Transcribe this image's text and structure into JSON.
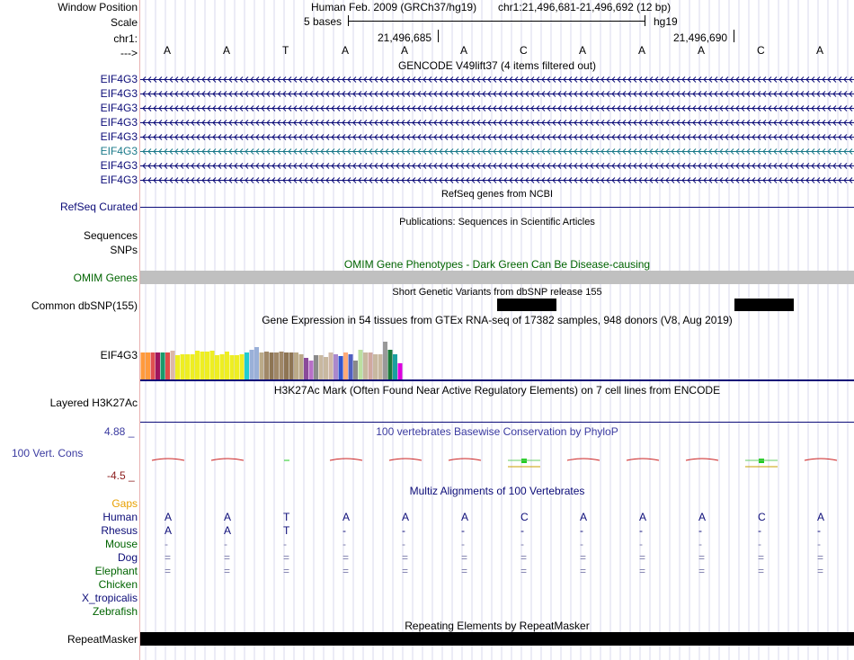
{
  "header": {
    "window_position_label": "Window Position",
    "scale_label": "Scale",
    "chrom_label": "chr1:",
    "arrow_label": "--->",
    "assembly": "Human Feb. 2009 (GRCh37/hg19)",
    "position": "chr1:21,496,681-21,496,692 (12 bp)",
    "scale_text": "5 bases",
    "db": "hg19",
    "coord_left": "21,496,685",
    "coord_right": "21,496,690"
  },
  "bases": [
    "A",
    "A",
    "T",
    "A",
    "A",
    "A",
    "C",
    "A",
    "A",
    "A",
    "C",
    "A"
  ],
  "gencode": {
    "title": "GENCODE V49lift37 (4 items filtered out)",
    "genes": [
      {
        "label": "EIF4G3",
        "highlight": false
      },
      {
        "label": "EIF4G3",
        "highlight": false
      },
      {
        "label": "EIF4G3",
        "highlight": false
      },
      {
        "label": "EIF4G3",
        "highlight": false
      },
      {
        "label": "EIF4G3",
        "highlight": false
      },
      {
        "label": "EIF4G3",
        "highlight": true
      },
      {
        "label": "EIF4G3",
        "highlight": false
      },
      {
        "label": "EIF4G3",
        "highlight": false
      }
    ]
  },
  "refseq": {
    "title": "RefSeq genes from NCBI",
    "label": "RefSeq Curated"
  },
  "pubs": {
    "title": "Publications: Sequences in Scientific Articles",
    "seq_label": "Sequences",
    "snp_label": "SNPs"
  },
  "omim": {
    "title": "OMIM Gene Phenotypes - Dark Green Can Be Disease-causing",
    "label": "OMIM Genes"
  },
  "dbsnp": {
    "title": "Short Genetic Variants from dbSNP release 155",
    "label": "Common dbSNP(155)"
  },
  "gtex": {
    "title": "Gene Expression in 54 tissues from GTEx RNA-seq of 17382 samples, 948 donors (V8, Aug 2019)",
    "label": "EIF4G3",
    "bars": [
      {
        "c": "#ff9a3c",
        "v": 0.5
      },
      {
        "c": "#ff9a3c",
        "v": 0.5
      },
      {
        "c": "#e05050",
        "v": 0.5
      },
      {
        "c": "#a0155e",
        "v": 0.5
      },
      {
        "c": "#1a9a6a",
        "v": 0.5
      },
      {
        "c": "#e04a4a",
        "v": 0.5
      },
      {
        "c": "#dcb8a8",
        "v": 0.53
      },
      {
        "c": "#eeee22",
        "v": 0.45
      },
      {
        "c": "#eeee22",
        "v": 0.47
      },
      {
        "c": "#eeee22",
        "v": 0.47
      },
      {
        "c": "#eeee22",
        "v": 0.47
      },
      {
        "c": "#eeee22",
        "v": 0.53
      },
      {
        "c": "#eeee22",
        "v": 0.52
      },
      {
        "c": "#eeee22",
        "v": 0.52
      },
      {
        "c": "#eeee22",
        "v": 0.53
      },
      {
        "c": "#eeee22",
        "v": 0.45
      },
      {
        "c": "#eeee22",
        "v": 0.47
      },
      {
        "c": "#eeee22",
        "v": 0.52
      },
      {
        "c": "#eeee22",
        "v": 0.45
      },
      {
        "c": "#eeee22",
        "v": 0.45
      },
      {
        "c": "#eeee22",
        "v": 0.47
      },
      {
        "c": "#22ccd0",
        "v": 0.5
      },
      {
        "c": "#9ab0d8",
        "v": 0.55
      },
      {
        "c": "#9ab0d8",
        "v": 0.6
      },
      {
        "c": "#bbaa88",
        "v": 0.5
      },
      {
        "c": "#a08868",
        "v": 0.52
      },
      {
        "c": "#8e7554",
        "v": 0.5
      },
      {
        "c": "#a08868",
        "v": 0.5
      },
      {
        "c": "#a08868",
        "v": 0.52
      },
      {
        "c": "#8e7554",
        "v": 0.5
      },
      {
        "c": "#8e7554",
        "v": 0.5
      },
      {
        "c": "#bbaa88",
        "v": 0.5
      },
      {
        "c": "#bbaa88",
        "v": 0.47
      },
      {
        "c": "#8a4a9a",
        "v": 0.4
      },
      {
        "c": "#b870c8",
        "v": 0.35
      },
      {
        "c": "#8a8a8a",
        "v": 0.45
      },
      {
        "c": "#c8b8a0",
        "v": 0.45
      },
      {
        "c": "#c8b8a0",
        "v": 0.42
      },
      {
        "c": "#d0b8a8",
        "v": 0.5
      },
      {
        "c": "#aa88cc",
        "v": 0.47
      },
      {
        "c": "#3355cc",
        "v": 0.43
      },
      {
        "c": "#ffaa77",
        "v": 0.5
      },
      {
        "c": "#5060c0",
        "v": 0.47
      },
      {
        "c": "#8a8a8a",
        "v": 0.35
      },
      {
        "c": "#bbe0a0",
        "v": 0.55
      },
      {
        "c": "#c8b8a0",
        "v": 0.5
      },
      {
        "c": "#d0a8a0",
        "v": 0.5
      },
      {
        "c": "#c8b8a0",
        "v": 0.47
      },
      {
        "c": "#c8b8a0",
        "v": 0.47
      },
      {
        "c": "#999999",
        "v": 0.7
      },
      {
        "c": "#1a7a3a",
        "v": 0.55
      },
      {
        "c": "#1aa0a0",
        "v": 0.47
      },
      {
        "c": "#dd00dd",
        "v": 0.3
      }
    ]
  },
  "h3k27ac": {
    "title": "H3K27Ac Mark (Often Found Near Active Regulatory Elements) on 7 cell lines from ENCODE",
    "label": "Layered H3K27Ac"
  },
  "phylop": {
    "title": "100 vertebrates Basewise Conservation by PhyloP",
    "label": "100 Vert. Cons",
    "max": "4.88 _",
    "min": "-4.5 _"
  },
  "multiz": {
    "title": "Multiz Alignments of 100 Vertebrates",
    "gaps_label": "Gaps",
    "species": [
      {
        "name": "Human",
        "type": "seq",
        "color": "#0c0c78",
        "seq": [
          "A",
          "A",
          "T",
          "A",
          "A",
          "A",
          "C",
          "A",
          "A",
          "A",
          "C",
          "A"
        ]
      },
      {
        "name": "Rhesus",
        "type": "seq",
        "color": "#0c0c78",
        "seq": [
          "A",
          "A",
          "T",
          "-",
          "-",
          "-",
          "-",
          "-",
          "-",
          "-",
          "-",
          "-"
        ]
      },
      {
        "name": "Mouse",
        "type": "dash",
        "color": "#006400",
        "seq": [
          "-",
          "-",
          "-",
          "-",
          "-",
          "-",
          "-",
          "-",
          "-",
          "-",
          "-",
          "-"
        ]
      },
      {
        "name": "Dog",
        "type": "eq",
        "color": "#0c0c78",
        "seq": [
          "=",
          "=",
          "=",
          "=",
          "=",
          "=",
          "=",
          "=",
          "=",
          "=",
          "=",
          "="
        ]
      },
      {
        "name": "Elephant",
        "type": "eq",
        "color": "#006400",
        "seq": [
          "=",
          "=",
          "=",
          "=",
          "=",
          "=",
          "=",
          "=",
          "=",
          "=",
          "=",
          "="
        ]
      },
      {
        "name": "Chicken",
        "type": "none",
        "color": "#006400",
        "seq": []
      },
      {
        "name": "X_tropicalis",
        "type": "none",
        "color": "#0c0c78",
        "seq": []
      },
      {
        "name": "Zebrafish",
        "type": "none",
        "color": "#006400",
        "seq": []
      }
    ]
  },
  "repeatmasker": {
    "title": "Repeating Elements by RepeatMasker",
    "label": "RepeatMasker"
  },
  "colors": {
    "navy": "#0c0c78",
    "green": "#006400",
    "gray": "#c0c0c0",
    "red": "#cc2222",
    "grid": "#d8d8ee"
  }
}
